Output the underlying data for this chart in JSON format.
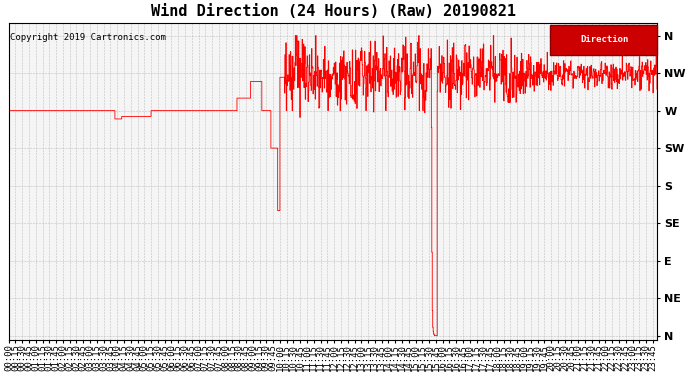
{
  "title": "Wind Direction (24 Hours) (Raw) 20190821",
  "copyright": "Copyright 2019 Cartronics.com",
  "legend_label": "Direction",
  "line_color": "#ff0000",
  "background_color": "#f5f5f5",
  "grid_color": "#aaaaaa",
  "ytick_labels": [
    "N",
    "NW",
    "W",
    "SW",
    "S",
    "SE",
    "E",
    "NE",
    "N"
  ],
  "ytick_values": [
    360,
    315,
    270,
    225,
    180,
    135,
    90,
    45,
    0
  ],
  "ylim": [
    -5,
    375
  ],
  "total_minutes": 1435,
  "title_fontsize": 11,
  "axis_fontsize": 6.5,
  "copyright_fontsize": 6.5
}
